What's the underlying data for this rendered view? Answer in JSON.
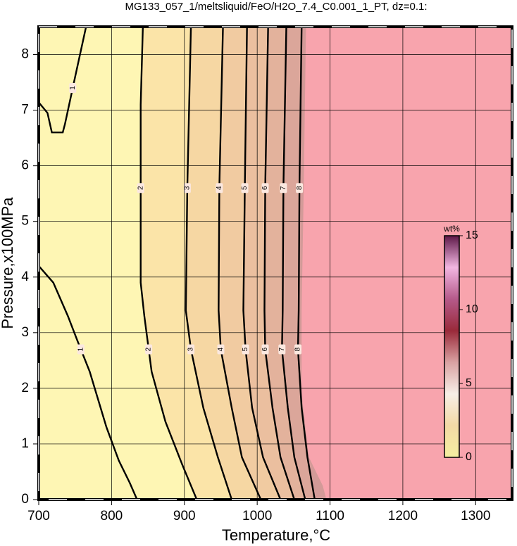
{
  "chart_data": {
    "type": "contour",
    "title": "MG133_057_1/meltsliquid/FeO/H2O_7.4_C0.001_1_PT, dz=0.1:",
    "x_label": "Temperature,°C",
    "y_label": "Pressure,x100MPa",
    "xlim": [
      700,
      1350
    ],
    "ylim": [
      0,
      8.5
    ],
    "xticks": [
      700,
      800,
      900,
      1000,
      1100,
      1200,
      1300
    ],
    "yticks": [
      0,
      1,
      2,
      3,
      4,
      5,
      6,
      7,
      8
    ],
    "grid": true,
    "background": "#fef6b4",
    "contours": [
      {
        "level": 1,
        "x": [
          700,
          720,
          725,
          740,
          753,
          770,
          793,
          810,
          825,
          835
        ],
        "y": [
          4.2,
          3.9,
          3.75,
          3.3,
          2.86,
          2.3,
          1.3,
          0.7,
          0.3,
          0
        ]
      },
      {
        "level": 1,
        "x": [
          700,
          712,
          718,
          733,
          736,
          750,
          765
        ],
        "y": [
          7.14,
          6.95,
          6.6,
          6.6,
          6.75,
          7.6,
          8.5
        ]
      },
      {
        "level": 2,
        "fill": "#fbe4a8",
        "x": [
          843,
          840,
          840,
          845,
          855,
          874,
          897,
          917
        ],
        "y": [
          8.5,
          7.1,
          3.9,
          3.3,
          2.3,
          1.4,
          0.63,
          0
        ]
      },
      {
        "level": 3,
        "fill": "#f6d7a3",
        "x": [
          909,
          904,
          902,
          909,
          926,
          946,
          965
        ],
        "y": [
          8.5,
          5.6,
          3.4,
          2.7,
          1.65,
          0.76,
          0
        ]
      },
      {
        "level": 4,
        "fill": "#f1cba1",
        "x": [
          953,
          948,
          947,
          950,
          965,
          979,
          1005
        ],
        "y": [
          8.5,
          5.6,
          3.4,
          2.7,
          1.65,
          0.76,
          0
        ]
      },
      {
        "level": 5,
        "fill": "#ebbf9f",
        "x": [
          986,
          983,
          981,
          984,
          993,
          1008,
          1032
        ],
        "y": [
          8.5,
          5.6,
          3.4,
          2.7,
          1.65,
          0.76,
          0
        ]
      },
      {
        "level": 6,
        "fill": "#e3b29c",
        "x": [
          1015,
          1011,
          1010,
          1011,
          1021,
          1032,
          1051
        ],
        "y": [
          8.5,
          5.6,
          3.4,
          2.7,
          1.65,
          0.76,
          0
        ]
      },
      {
        "level": 7,
        "fill": "#dba69a",
        "x": [
          1040,
          1036,
          1035,
          1034,
          1042,
          1051,
          1066
        ],
        "y": [
          8.5,
          5.6,
          3.4,
          2.7,
          1.65,
          0.76,
          0
        ]
      },
      {
        "level": 8,
        "fill": "#d39a98",
        "x": [
          1061,
          1058,
          1057,
          1056,
          1061,
          1069,
          1079
        ],
        "y": [
          8.5,
          5.6,
          3.4,
          2.7,
          1.65,
          0.76,
          0
        ]
      }
    ],
    "mask": {
      "color": "#f8a4ad",
      "x": [
        1067,
        1064,
        1061,
        1061,
        1071,
        1090,
        1095
      ],
      "y": [
        8.5,
        5.7,
        3.4,
        1.9,
        0.76,
        0.25,
        0
      ]
    },
    "colorbar": {
      "label": "wt%",
      "lim": [
        0,
        15
      ],
      "ticks": [
        0,
        5,
        10,
        15
      ],
      "colors": [
        "#f4efa0",
        "#f3d9a5",
        "#f7eee6",
        "#d9a2a2",
        "#9a2a3a",
        "#b55a8a",
        "#f2b6e2",
        "#5e1848"
      ]
    }
  }
}
